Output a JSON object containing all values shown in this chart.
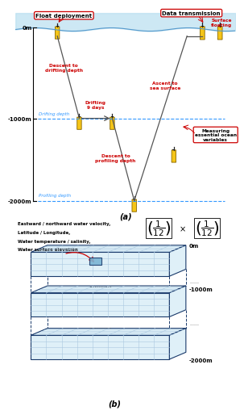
{
  "panel_a": {
    "title": "(a)",
    "float_deployment_label": "Float deployment",
    "data_transmission_label": "Data transmission",
    "surface_floating_label": "Surface\nfloating",
    "descent_drifting_label": "Descent to\ndrifting depth",
    "drifting_label": "Drifting\n9 days",
    "descent_profiling_label": "Descent to\nprofiling depth",
    "ascent_label": "Ascent to\nsea surface",
    "measuring_label": "Measuring\nessential ocean\nvariables",
    "drifting_depth_label": "Drifting depth",
    "profiling_depth_label": "Profiling depth",
    "y0m": "0m",
    "y1000m": "-1000m",
    "y2000m": "-2000m",
    "water_color": "#b8dff0",
    "dashed_color": "#3399ff",
    "float_color": "#f5c518",
    "annotation_color": "#cc0000",
    "box_color": "#cc0000",
    "line_color": "#555555"
  },
  "panel_b": {
    "title": "(b)",
    "text_lines": [
      "Eastward / northward water velocity,",
      "Latitude / Longitude,",
      "Water temperature / salinity,",
      "Water surface elevation"
    ],
    "grid_color": "#aac8e0",
    "face_color": "#dff0f8",
    "edge_color": "#1a3a6b",
    "arrow_color": "#cc0000",
    "highlight_color": "#7ab4d4",
    "y0m": "0m",
    "y1000m": "-1000m",
    "y2000m": "-2000m"
  }
}
